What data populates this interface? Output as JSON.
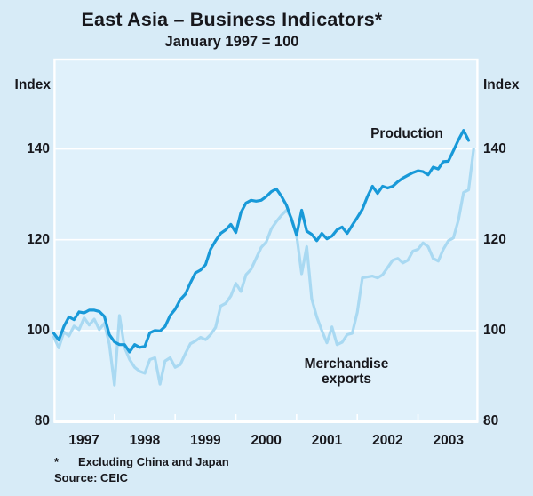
{
  "title": "East Asia – Business Indicators*",
  "subtitle": "January 1997 = 100",
  "axes": {
    "left_unit": "Index",
    "right_unit": "Index",
    "y_tick_labels": [
      "140",
      "120",
      "100",
      "80"
    ],
    "x_tick_labels": [
      "1997",
      "1998",
      "1999",
      "2000",
      "2001",
      "2002",
      "2003"
    ]
  },
  "footnote": {
    "marker": "*",
    "text": "Excluding China and Japan"
  },
  "source": "Source: CEIC",
  "colors": {
    "background": "#d7ebf7",
    "plot_background": "#e0f1fb",
    "grid": "#ffffff",
    "production_line": "#1899d8",
    "exports_line": "#a9d9f2",
    "text": "#17171c"
  },
  "chart_data": {
    "type": "line",
    "title": "East Asia – Business Indicators (January 1997 = 100)",
    "x_unit": "month",
    "x_range": [
      "1997-01",
      "2003-12"
    ],
    "ylim": [
      80,
      159.7
    ],
    "yticks": [
      80,
      100,
      120,
      140
    ],
    "grid": true,
    "legend_position": "inline-annotations",
    "series": [
      {
        "name": "Production",
        "color": "#1899d8",
        "start": "1997-01",
        "values": [
          99.4,
          97.9,
          100.9,
          103,
          102.4,
          104.1,
          103.9,
          104.5,
          104.5,
          104.2,
          103.1,
          99.1,
          97.5,
          96.9,
          96.9,
          95.3,
          96.9,
          96.3,
          96.5,
          99.5,
          100,
          99.9,
          100.9,
          103.3,
          104.7,
          106.8,
          108,
          110.5,
          112.7,
          113.3,
          114.5,
          117.9,
          119.8,
          121.4,
          122.2,
          123.4,
          121.6,
          126,
          128.1,
          128.7,
          128.5,
          128.7,
          129.5,
          130.6,
          131.2,
          129.6,
          127.6,
          124.5,
          121,
          126.5,
          121.9,
          121.2,
          119.8,
          121.4,
          120.2,
          120.8,
          122.2,
          122.8,
          121.4,
          123.2,
          124.9,
          126.7,
          129.5,
          131.8,
          130.2,
          131.8,
          131.4,
          131.8,
          132.8,
          133.6,
          134.2,
          134.8,
          135.2,
          135,
          134.3,
          136,
          135.6,
          137.2,
          137.3,
          139.6,
          142,
          144.1,
          141.9
        ]
      },
      {
        "name": "Merchandise exports",
        "color": "#a9d9f2",
        "start": "1997-01",
        "values": [
          98.6,
          96.2,
          99.7,
          98.8,
          101,
          100.2,
          102.8,
          101.2,
          102.5,
          100.2,
          101.6,
          97,
          88,
          103.3,
          96.3,
          93.6,
          91.9,
          91,
          90.6,
          93.6,
          94,
          88.2,
          93.3,
          94,
          91.9,
          92.5,
          94.9,
          97.1,
          97.7,
          98.5,
          98,
          99.1,
          100.7,
          105.4,
          106,
          107.6,
          110.4,
          108.6,
          112.3,
          113.5,
          115.9,
          118.3,
          119.5,
          122.4,
          124,
          125.4,
          126.5,
          124.8,
          121,
          112.5,
          118.5,
          107,
          103,
          100,
          97.3,
          100.8,
          96.9,
          97.4,
          99.1,
          99.4,
          104,
          111.6,
          111.8,
          112,
          111.6,
          112.3,
          113.9,
          115.5,
          115.9,
          114.9,
          115.5,
          117.5,
          117.9,
          119.3,
          118.5,
          115.9,
          115.3,
          117.9,
          119.8,
          120.4,
          124.4,
          130.4,
          131,
          140
        ]
      }
    ]
  }
}
